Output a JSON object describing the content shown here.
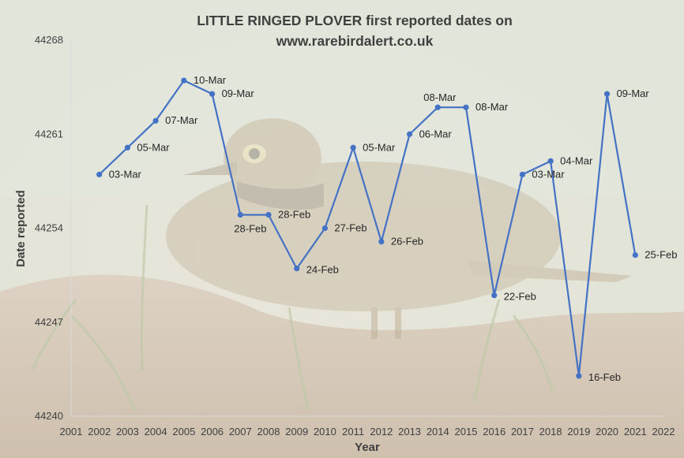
{
  "chart_data": {
    "type": "line",
    "title_lines": [
      "LITTLE RINGED PLOVER first reported dates on",
      "www.rarebirdalert.co.uk"
    ],
    "xlabel": "Year",
    "ylabel": "Date reported",
    "xlim": [
      2001,
      2022
    ],
    "ylim": [
      44240,
      44268
    ],
    "x_ticks": [
      2001,
      2002,
      2003,
      2004,
      2005,
      2006,
      2007,
      2008,
      2009,
      2010,
      2011,
      2012,
      2013,
      2014,
      2015,
      2016,
      2017,
      2018,
      2019,
      2020,
      2021,
      2022
    ],
    "y_ticks": [
      44240,
      44247,
      44254,
      44261,
      44268
    ],
    "grid": false,
    "line_color": "#4472c4",
    "background": "photo of a Little Ringed Plover on muddy ground (faded)",
    "series": [
      {
        "points": [
          {
            "x": 2002,
            "y": 44258,
            "label": "03-Mar"
          },
          {
            "x": 2003,
            "y": 44260,
            "label": "05-Mar"
          },
          {
            "x": 2004,
            "y": 44262,
            "label": "07-Mar"
          },
          {
            "x": 2005,
            "y": 44265,
            "label": "10-Mar"
          },
          {
            "x": 2006,
            "y": 44264,
            "label": "09-Mar"
          },
          {
            "x": 2007,
            "y": 44255,
            "label": "28-Feb"
          },
          {
            "x": 2008,
            "y": 44255,
            "label": "28-Feb"
          },
          {
            "x": 2009,
            "y": 44251,
            "label": "24-Feb"
          },
          {
            "x": 2010,
            "y": 44254,
            "label": "27-Feb"
          },
          {
            "x": 2011,
            "y": 44260,
            "label": "05-Mar"
          },
          {
            "x": 2012,
            "y": 44253,
            "label": "26-Feb"
          },
          {
            "x": 2013,
            "y": 44261,
            "label": "06-Mar"
          },
          {
            "x": 2014,
            "y": 44263,
            "label": "08-Mar"
          },
          {
            "x": 2015,
            "y": 44263,
            "label": "08-Mar"
          },
          {
            "x": 2016,
            "y": 44249,
            "label": "22-Feb"
          },
          {
            "x": 2017,
            "y": 44258,
            "label": "03-Mar"
          },
          {
            "x": 2018,
            "y": 44259,
            "label": "04-Mar"
          },
          {
            "x": 2019,
            "y": 44243,
            "label": "16-Feb"
          },
          {
            "x": 2020,
            "y": 44264,
            "label": "09-Mar"
          },
          {
            "x": 2021,
            "y": 44252,
            "label": "25-Feb"
          }
        ]
      }
    ]
  }
}
